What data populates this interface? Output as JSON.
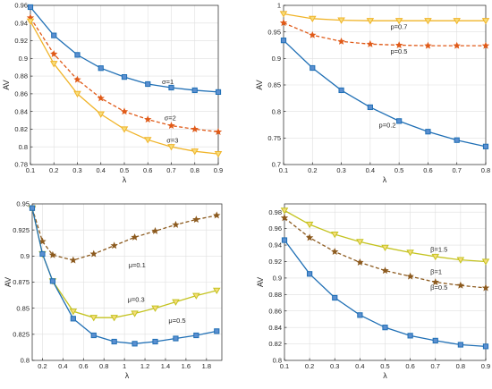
{
  "colors": {
    "blue": "#1f6fb5",
    "orange": "#e05a18",
    "yellow": "#f0b429",
    "olive": "#c4c320",
    "brown": "#8c5a1e"
  },
  "chart_data": [
    {
      "type": "line",
      "xlabel": "λ",
      "ylabel": "AV",
      "xlim": [
        0.1,
        0.9
      ],
      "ylim": [
        0.78,
        0.96
      ],
      "xticks": [
        "0.1",
        "0.2",
        "0.3",
        "0.4",
        "0.5",
        "0.6",
        "0.7",
        "0.8",
        "0.9"
      ],
      "yticks": [
        "0.78",
        "0.8",
        "0.82",
        "0.84",
        "0.86",
        "0.88",
        "0.9",
        "0.92",
        "0.94",
        "0.96"
      ],
      "grid": true,
      "series": [
        {
          "name": "σ=1",
          "color": "blue",
          "style": "solid",
          "marker": "square",
          "x": [
            0.1,
            0.2,
            0.3,
            0.4,
            0.5,
            0.6,
            0.7,
            0.8,
            0.9
          ],
          "values": [
            0.958,
            0.926,
            0.904,
            0.889,
            0.879,
            0.871,
            0.867,
            0.864,
            0.862
          ]
        },
        {
          "name": "σ=2",
          "color": "orange",
          "style": "dashed",
          "marker": "star",
          "x": [
            0.1,
            0.2,
            0.3,
            0.4,
            0.5,
            0.6,
            0.7,
            0.8,
            0.9
          ],
          "values": [
            0.946,
            0.905,
            0.876,
            0.855,
            0.84,
            0.831,
            0.824,
            0.82,
            0.817
          ]
        },
        {
          "name": "σ=3",
          "color": "yellow",
          "style": "solid",
          "marker": "tri-down",
          "x": [
            0.1,
            0.2,
            0.3,
            0.4,
            0.5,
            0.6,
            0.7,
            0.8,
            0.9
          ],
          "values": [
            0.942,
            0.894,
            0.86,
            0.837,
            0.82,
            0.808,
            0.8,
            0.795,
            0.792
          ]
        }
      ],
      "annotations": [
        {
          "text": "σ=1",
          "x": 0.66,
          "y": 0.871
        },
        {
          "text": "σ=2",
          "x": 0.67,
          "y": 0.83
        },
        {
          "text": "σ=3",
          "x": 0.68,
          "y": 0.805
        }
      ]
    },
    {
      "type": "line",
      "xlabel": "λ",
      "ylabel": "AV",
      "xlim": [
        0.1,
        0.8
      ],
      "ylim": [
        0.7,
        1.0
      ],
      "xticks": [
        "0.1",
        "0.2",
        "0.3",
        "0.4",
        "0.5",
        "0.6",
        "0.7",
        "0.8"
      ],
      "yticks": [
        "0.7",
        "0.75",
        "0.8",
        "0.85",
        "0.9",
        "0.95",
        "1"
      ],
      "grid": true,
      "series": [
        {
          "name": "p=0.7",
          "color": "yellow",
          "style": "solid",
          "marker": "tri-down",
          "x": [
            0.1,
            0.2,
            0.3,
            0.4,
            0.5,
            0.6,
            0.7,
            0.8
          ],
          "values": [
            0.984,
            0.975,
            0.972,
            0.971,
            0.971,
            0.971,
            0.971,
            0.971
          ]
        },
        {
          "name": "p=0.5",
          "color": "orange",
          "style": "dashed",
          "marker": "star",
          "x": [
            0.1,
            0.2,
            0.3,
            0.4,
            0.5,
            0.6,
            0.7,
            0.8
          ],
          "values": [
            0.967,
            0.944,
            0.932,
            0.927,
            0.925,
            0.924,
            0.924,
            0.924
          ]
        },
        {
          "name": "p=0.2",
          "color": "blue",
          "style": "solid",
          "marker": "square",
          "x": [
            0.1,
            0.2,
            0.3,
            0.4,
            0.5,
            0.6,
            0.7,
            0.8
          ],
          "values": [
            0.934,
            0.882,
            0.84,
            0.808,
            0.782,
            0.762,
            0.746,
            0.734
          ]
        }
      ],
      "annotations": [
        {
          "text": "p=0.7",
          "x": 0.47,
          "y": 0.955
        },
        {
          "text": "p=0.5",
          "x": 0.47,
          "y": 0.909
        },
        {
          "text": "p=0.2",
          "x": 0.43,
          "y": 0.77
        }
      ]
    },
    {
      "type": "line",
      "xlabel": "λ",
      "ylabel": "AV",
      "xlim": [
        0.1,
        1.95
      ],
      "ylim": [
        0.8,
        0.95
      ],
      "xticks": [
        "0.2",
        "0.4",
        "0.6",
        "0.8",
        "1",
        "1.2",
        "1.4",
        "1.6",
        "1.8"
      ],
      "xtick_values": [
        0.2,
        0.4,
        0.6,
        0.8,
        1.0,
        1.2,
        1.4,
        1.6,
        1.8
      ],
      "yticks": [
        "0.8",
        "0.825",
        "0.85",
        "0.875",
        "0.9",
        "0.925",
        "0.95"
      ],
      "grid": true,
      "series": [
        {
          "name": "μ=0.1",
          "color": "brown",
          "style": "dashed",
          "marker": "star",
          "x": [
            0.1,
            0.2,
            0.3,
            0.5,
            0.7,
            0.9,
            1.1,
            1.3,
            1.5,
            1.7,
            1.9
          ],
          "values": [
            0.946,
            0.914,
            0.901,
            0.896,
            0.902,
            0.91,
            0.918,
            0.924,
            0.93,
            0.935,
            0.939
          ]
        },
        {
          "name": "μ=0.3",
          "color": "olive",
          "style": "solid",
          "marker": "tri-down",
          "x": [
            0.1,
            0.2,
            0.3,
            0.5,
            0.7,
            0.9,
            1.1,
            1.3,
            1.5,
            1.7,
            1.9
          ],
          "values": [
            0.946,
            0.902,
            0.876,
            0.847,
            0.841,
            0.841,
            0.845,
            0.85,
            0.856,
            0.862,
            0.867
          ]
        },
        {
          "name": "μ=0.5",
          "color": "blue",
          "style": "solid",
          "marker": "square",
          "x": [
            0.1,
            0.2,
            0.3,
            0.5,
            0.7,
            0.9,
            1.1,
            1.3,
            1.5,
            1.7,
            1.9
          ],
          "values": [
            0.946,
            0.902,
            0.876,
            0.84,
            0.824,
            0.818,
            0.816,
            0.818,
            0.821,
            0.824,
            0.828
          ]
        }
      ],
      "annotations": [
        {
          "text": "μ=0.1",
          "x": 1.04,
          "y": 0.889
        },
        {
          "text": "μ=0.3",
          "x": 1.03,
          "y": 0.856
        },
        {
          "text": "μ=0.5",
          "x": 1.43,
          "y": 0.836
        }
      ]
    },
    {
      "type": "line",
      "xlabel": "λ",
      "ylabel": "AV",
      "xlim": [
        0.1,
        0.9
      ],
      "ylim": [
        0.8,
        0.99
      ],
      "xticks": [
        "0.1",
        "0.2",
        "0.3",
        "0.4",
        "0.5",
        "0.6",
        "0.7",
        "0.8",
        "0.9"
      ],
      "yticks": [
        "0.8",
        "0.82",
        "0.84",
        "0.86",
        "0.88",
        "0.9",
        "0.92",
        "0.94",
        "0.96",
        "0.98"
      ],
      "grid": true,
      "series": [
        {
          "name": "β=1.5",
          "color": "olive",
          "style": "solid",
          "marker": "tri-down",
          "x": [
            0.1,
            0.2,
            0.3,
            0.4,
            0.5,
            0.6,
            0.7,
            0.8,
            0.9
          ],
          "values": [
            0.982,
            0.965,
            0.953,
            0.944,
            0.937,
            0.931,
            0.926,
            0.922,
            0.92
          ]
        },
        {
          "name": "β=1",
          "color": "brown",
          "style": "dashed",
          "marker": "star",
          "x": [
            0.1,
            0.2,
            0.3,
            0.4,
            0.5,
            0.6,
            0.7,
            0.8,
            0.9
          ],
          "values": [
            0.973,
            0.949,
            0.932,
            0.919,
            0.909,
            0.902,
            0.895,
            0.891,
            0.888
          ]
        },
        {
          "name": "β=0.5",
          "color": "blue",
          "style": "solid",
          "marker": "square",
          "x": [
            0.1,
            0.2,
            0.3,
            0.4,
            0.5,
            0.6,
            0.7,
            0.8,
            0.9
          ],
          "values": [
            0.946,
            0.905,
            0.876,
            0.855,
            0.84,
            0.83,
            0.824,
            0.819,
            0.817
          ]
        }
      ],
      "annotations": [
        {
          "text": "β=1.5",
          "x": 0.68,
          "y": 0.932
        },
        {
          "text": "β=1",
          "x": 0.68,
          "y": 0.905
        },
        {
          "text": "β=0.5",
          "x": 0.68,
          "y": 0.886
        }
      ]
    }
  ]
}
